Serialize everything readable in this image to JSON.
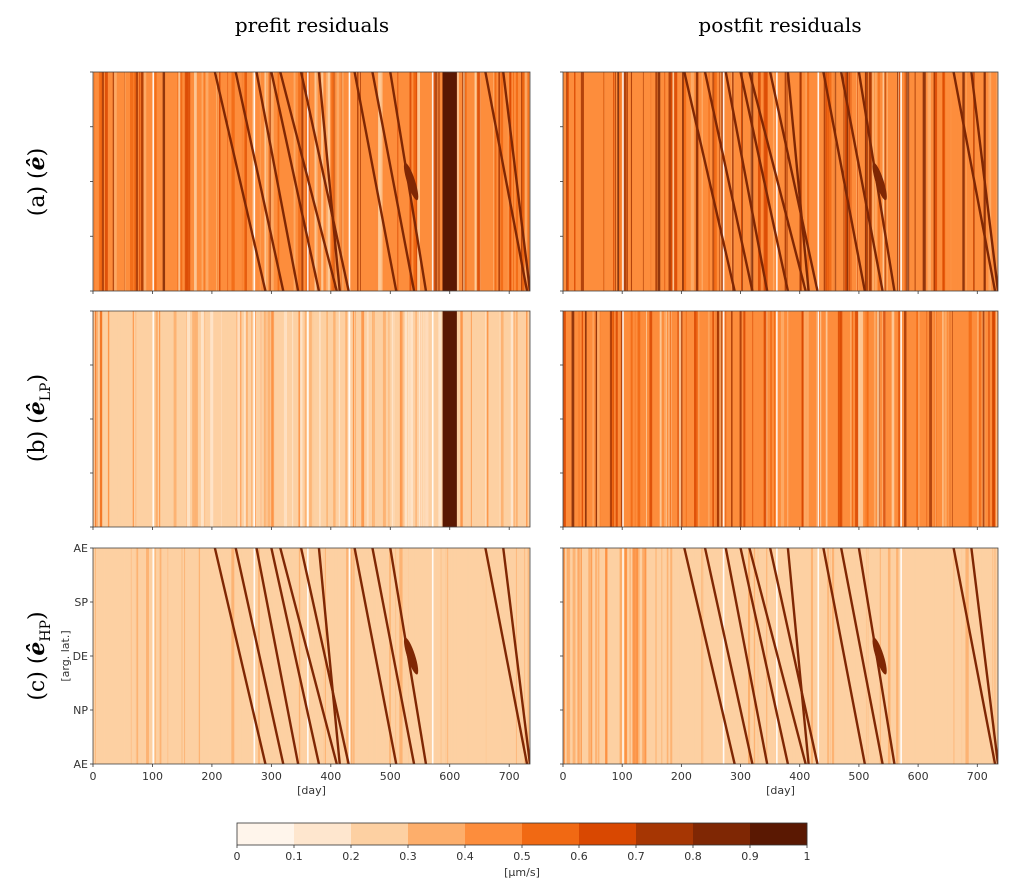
{
  "columns": [
    "prefit residuals",
    "postfit residuals"
  ],
  "rows": [
    {
      "label_prefix": "(a)",
      "symbol": "ê",
      "subscript": ""
    },
    {
      "label_prefix": "(b)",
      "symbol": "ê",
      "subscript": "LP"
    },
    {
      "label_prefix": "(c)",
      "symbol": "ê",
      "subscript": "HP"
    }
  ],
  "colors": {
    "cmap": [
      "#fff5eb",
      "#fee6ce",
      "#fdd0a2",
      "#fdae6b",
      "#fd8d3c",
      "#f16913",
      "#d94801",
      "#a63603",
      "#7f2704",
      "#5a1802"
    ]
  },
  "chart_data": {
    "type": "heatmap",
    "x_axis": {
      "label": "[day]",
      "range": [
        0,
        735
      ],
      "ticks": [
        0,
        100,
        200,
        300,
        400,
        500,
        600,
        700
      ]
    },
    "y_axis": {
      "label": "[arg. lat.]",
      "ticks": [
        "AE",
        "SP",
        "DE",
        "NP",
        "AE"
      ]
    },
    "colorbar": {
      "label": "[μm/s]",
      "range": [
        0,
        1
      ],
      "ticks": [
        "0",
        "0.1",
        "0.2",
        "0.3",
        "0.4",
        "0.5",
        "0.6",
        "0.7",
        "0.8",
        "0.9",
        "1"
      ]
    },
    "panels": [
      {
        "row": "a",
        "column": "prefit",
        "base_level": 0.42,
        "vertical_striping": 0.28,
        "diagonal_tracks": true,
        "saturated_band_days": [
          588,
          612
        ]
      },
      {
        "row": "a",
        "column": "postfit",
        "base_level": 0.48,
        "vertical_striping": 0.32,
        "diagonal_tracks": true
      },
      {
        "row": "b",
        "column": "prefit",
        "base_level": 0.22,
        "vertical_striping": 0.2,
        "diagonal_tracks": false,
        "saturated_band_days": [
          588,
          612
        ]
      },
      {
        "row": "b",
        "column": "postfit",
        "base_level": 0.4,
        "vertical_striping": 0.32,
        "diagonal_tracks": false
      },
      {
        "row": "c",
        "column": "prefit",
        "base_level": 0.27,
        "vertical_striping": 0.04,
        "diagonal_tracks": true
      },
      {
        "row": "c",
        "column": "postfit",
        "base_level": 0.27,
        "vertical_striping": 0.04,
        "diagonal_tracks": true
      }
    ],
    "tracks": [
      {
        "days": [
          205,
          290
        ],
        "shape": "line"
      },
      {
        "days": [
          240,
          320
        ],
        "shape": "line"
      },
      {
        "days": [
          275,
          345
        ],
        "shape": "line"
      },
      {
        "days": [
          300,
          380
        ],
        "shape": "line"
      },
      {
        "days": [
          315,
          410
        ],
        "shape": "line"
      },
      {
        "days": [
          350,
          430
        ],
        "shape": "line"
      },
      {
        "days": [
          380,
          415
        ],
        "shape": "line"
      },
      {
        "days": [
          440,
          510
        ],
        "shape": "line"
      },
      {
        "days": [
          470,
          540
        ],
        "shape": "line"
      },
      {
        "days": [
          500,
          560
        ],
        "shape": "line"
      },
      {
        "days": [
          660,
          730
        ],
        "shape": "line"
      },
      {
        "days": [
          690,
          735
        ],
        "shape": "line"
      },
      {
        "days": [
          525,
          545
        ],
        "shape": "blob"
      }
    ]
  }
}
